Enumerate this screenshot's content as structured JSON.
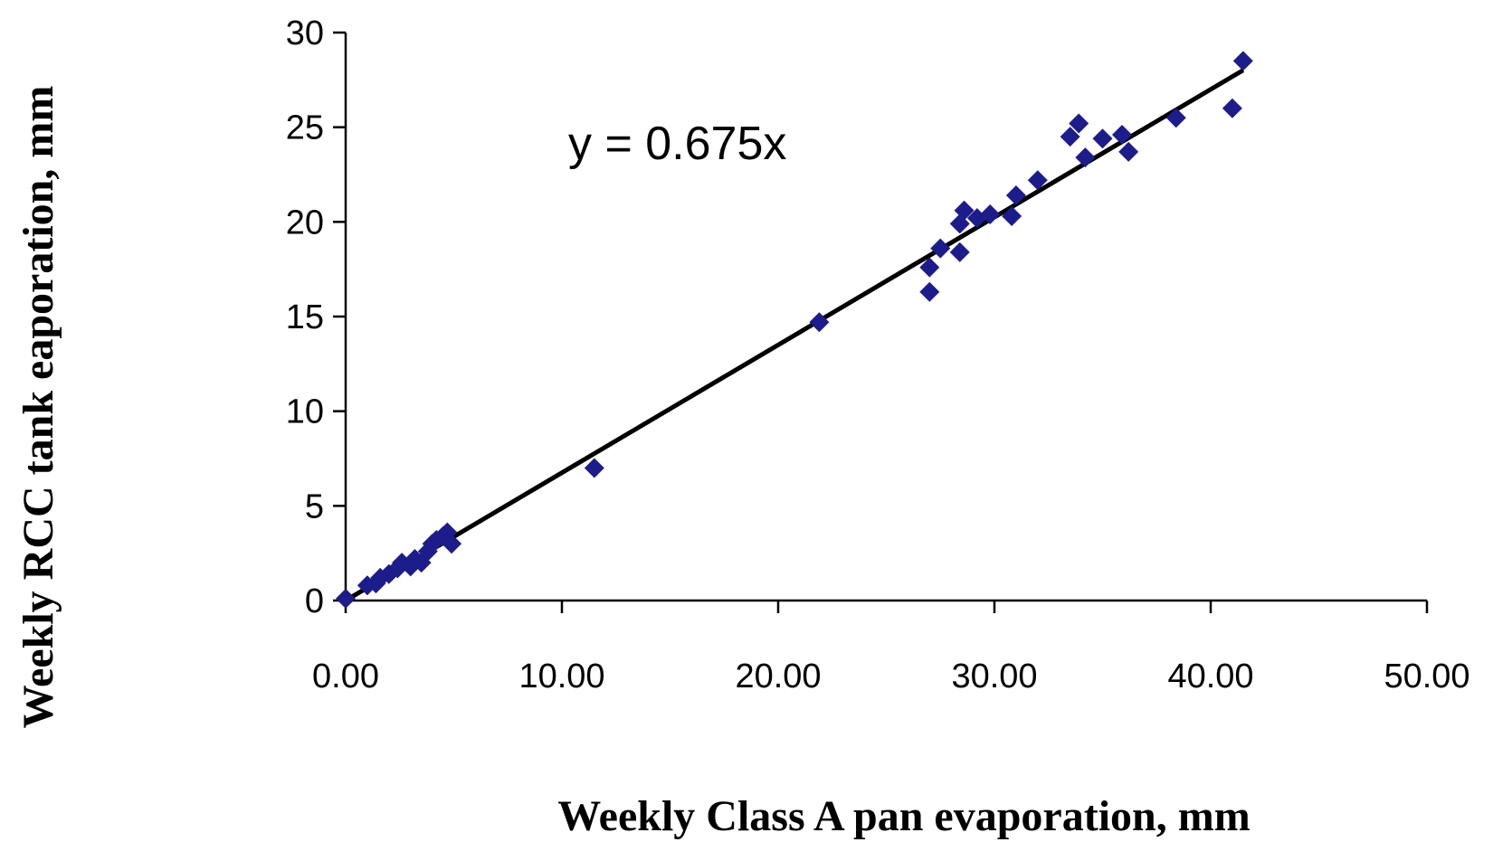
{
  "chart_data": {
    "type": "scatter",
    "title": "",
    "xlabel": "Weekly Class A pan evaporation, mm",
    "ylabel": "Weekly RCC  tank eaporation, mm",
    "xlim": [
      0,
      50
    ],
    "ylim": [
      0,
      30
    ],
    "x_tick_labels": [
      "0.00",
      "10.00",
      "20.00",
      "30.00",
      "40.00",
      "50.00"
    ],
    "x_tick_values": [
      0,
      10,
      20,
      30,
      40,
      50
    ],
    "y_tick_labels": [
      "0",
      "5",
      "10",
      "15",
      "20",
      "25",
      "30"
    ],
    "y_tick_values": [
      0,
      5,
      10,
      15,
      20,
      25,
      30
    ],
    "grid": false,
    "legend": "none",
    "marker_color": "#1c1c8a",
    "trendline": {
      "slope": 0.675,
      "x_range": [
        0,
        41.5
      ],
      "color": "#000000"
    },
    "annotation": "y = 0.675x",
    "points": [
      [
        0.0,
        0.1
      ],
      [
        1.0,
        0.8
      ],
      [
        1.4,
        0.9
      ],
      [
        1.6,
        1.2
      ],
      [
        2.0,
        1.4
      ],
      [
        2.4,
        1.7
      ],
      [
        2.6,
        2.0
      ],
      [
        3.0,
        1.8
      ],
      [
        3.2,
        2.2
      ],
      [
        3.5,
        2.0
      ],
      [
        3.8,
        2.6
      ],
      [
        4.0,
        3.0
      ],
      [
        4.2,
        3.2
      ],
      [
        4.5,
        3.4
      ],
      [
        4.7,
        3.6
      ],
      [
        4.9,
        3.0
      ],
      [
        11.5,
        7.0
      ],
      [
        21.9,
        14.7
      ],
      [
        27.0,
        16.3
      ],
      [
        27.0,
        17.6
      ],
      [
        27.5,
        18.6
      ],
      [
        28.4,
        18.4
      ],
      [
        28.4,
        19.9
      ],
      [
        28.6,
        20.6
      ],
      [
        29.2,
        20.2
      ],
      [
        29.8,
        20.4
      ],
      [
        30.8,
        20.3
      ],
      [
        31.0,
        21.4
      ],
      [
        32.0,
        22.2
      ],
      [
        33.5,
        24.5
      ],
      [
        33.9,
        25.2
      ],
      [
        34.2,
        23.4
      ],
      [
        35.0,
        24.4
      ],
      [
        35.9,
        24.6
      ],
      [
        36.2,
        23.7
      ],
      [
        38.4,
        25.5
      ],
      [
        41.0,
        26.0
      ],
      [
        41.5,
        28.5
      ]
    ]
  }
}
